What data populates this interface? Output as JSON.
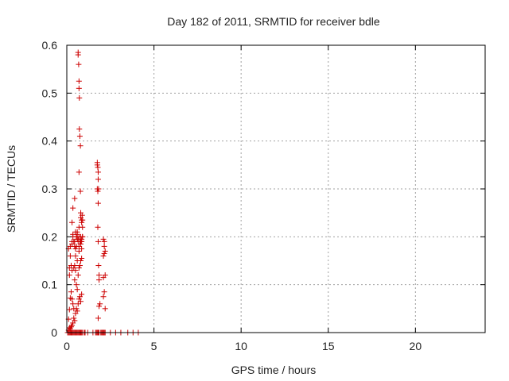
{
  "chart_data": {
    "type": "scatter",
    "title": "Day 182 of 2011, SRMTID for receiver bdle",
    "xlabel": "GPS time / hours",
    "ylabel": "SRMTID / TECUs",
    "xlim": [
      0,
      24
    ],
    "ylim": [
      0,
      0.6
    ],
    "xticks": [
      0,
      5,
      10,
      15,
      20
    ],
    "xtick_labels": [
      "0",
      "5",
      "10",
      "15",
      "20"
    ],
    "yticks": [
      0,
      0.1,
      0.2,
      0.3,
      0.4,
      0.5,
      0.6
    ],
    "ytick_labels": [
      "0",
      "0.1",
      "0.2",
      "0.3",
      "0.4",
      "0.5",
      "0.6"
    ],
    "grid": true,
    "marker": "+",
    "marker_color": "#cc0000",
    "series": [
      {
        "x": [
          0.05,
          0.1,
          0.15,
          0.2,
          0.25,
          0.3,
          0.35,
          0.4,
          0.45,
          0.5,
          0.55,
          0.6,
          0.65,
          0.7,
          0.75,
          0.8,
          0.85,
          0.9,
          1.0,
          1.05,
          1.2,
          1.5,
          1.65,
          1.7,
          1.75,
          1.8,
          1.85,
          1.95,
          2.0,
          2.05,
          2.1,
          2.15,
          2.2,
          2.5,
          2.8,
          3.1,
          3.5,
          3.8,
          4.1,
          0.1,
          0.15,
          0.2,
          0.25,
          0.3,
          0.35,
          0.4,
          0.45,
          0.5,
          0.55,
          0.6,
          0.65,
          0.7,
          0.75,
          0.8,
          0.85,
          0.1,
          0.15,
          0.2,
          0.25,
          0.3,
          0.35,
          0.4,
          0.45,
          0.5,
          0.55,
          0.6,
          0.65,
          0.7,
          0.75,
          0.8,
          0.85,
          0.15,
          0.25,
          0.3,
          0.4,
          0.45,
          0.5,
          0.55,
          0.6,
          0.65,
          0.7,
          0.75,
          0.8,
          0.85,
          0.1,
          0.2,
          0.3,
          0.35,
          0.5,
          0.6,
          0.7,
          0.8,
          0.3,
          0.35,
          0.45,
          0.55,
          0.6,
          0.7,
          0.8,
          0.85,
          0.9,
          0.15,
          0.2,
          0.3,
          0.4,
          0.45,
          0.5,
          0.6,
          0.7,
          0.35,
          0.45,
          0.55,
          0.65,
          0.8,
          0.9,
          0.65,
          0.65,
          0.68,
          0.7,
          0.7,
          0.72,
          0.72,
          0.75,
          0.78,
          0.7,
          0.78,
          0.8,
          0.85,
          0.85,
          0.88,
          0.9,
          0.9,
          0.85,
          1.75,
          1.75,
          1.78,
          1.8,
          1.8,
          1.75,
          1.78,
          1.82,
          1.8,
          1.78,
          1.8,
          1.82,
          1.85,
          1.85,
          1.9,
          1.85,
          1.8,
          2.1,
          2.15,
          2.15,
          2.15,
          2.1,
          2.2,
          2.2,
          2.1,
          2.15,
          2.1,
          2.2
        ],
        "y": [
          0,
          0,
          0,
          0,
          0,
          0,
          0,
          0,
          0,
          0,
          0,
          0,
          0,
          0,
          0,
          0,
          0,
          0,
          0,
          0,
          0,
          0,
          0,
          0,
          0,
          0,
          0,
          0,
          0,
          0,
          0,
          0,
          0,
          0,
          0,
          0,
          0,
          0,
          0,
          0.005,
          0.01,
          0.008,
          0.012,
          0.015,
          0.02,
          0.03,
          0.025,
          0.04,
          0.05,
          0.045,
          0.06,
          0.07,
          0.075,
          0.065,
          0.08,
          0.028,
          0.048,
          0.072,
          0.085,
          0.07,
          0.06,
          0.05,
          0.11,
          0.13,
          0.1,
          0.09,
          0.12,
          0.135,
          0.14,
          0.15,
          0.155,
          0.135,
          0.14,
          0.13,
          0.135,
          0.14,
          0.16,
          0.18,
          0.15,
          0.19,
          0.17,
          0.19,
          0.2,
          0.195,
          0.175,
          0.18,
          0.19,
          0.2,
          0.21,
          0.205,
          0.2,
          0.185,
          0.23,
          0.26,
          0.28,
          0.2,
          0.195,
          0.18,
          0.19,
          0.175,
          0.2,
          0.12,
          0.16,
          0.185,
          0.19,
          0.19,
          0.175,
          0.21,
          0.22,
          0.205,
          0.18,
          0.2,
          0.195,
          0.24,
          0.235,
          0.585,
          0.58,
          0.56,
          0.525,
          0.51,
          0.49,
          0.425,
          0.41,
          0.39,
          0.335,
          0.295,
          0.25,
          0.23,
          0.235,
          0.245,
          0.22,
          0.2,
          0.19,
          0.355,
          0.35,
          0.345,
          0.335,
          0.32,
          0.3,
          0.295,
          0.3,
          0.27,
          0.22,
          0.19,
          0.14,
          0.11,
          0.12,
          0.06,
          0.055,
          0.03,
          0.195,
          0.19,
          0.18,
          0.165,
          0.16,
          0.17,
          0.12,
          0.115,
          0.085,
          0.075,
          0.05
        ]
      }
    ]
  }
}
